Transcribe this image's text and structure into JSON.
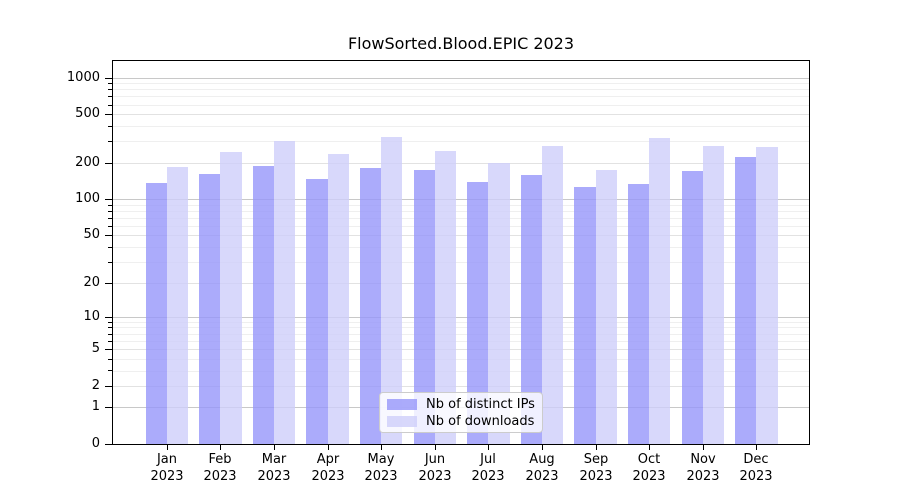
{
  "figure": {
    "title": "FlowSorted.Blood.EPIC 2023"
  },
  "colors": {
    "background": "#ffffff",
    "axis": "#000000",
    "decade_grid": "#c8c8c8",
    "grid": "#e2e2e2",
    "minor_grid": "#efefef",
    "bar_distinct_ips": "rgba(150,150,250,0.8)",
    "bar_downloads": "rgba(206,206,250,0.8)"
  },
  "chart_data": {
    "type": "bar",
    "title": "FlowSorted.Blood.EPIC 2023",
    "xlabel": "",
    "ylabel": "",
    "yscale": "log1p",
    "ylim": [
      0,
      1366
    ],
    "grid": true,
    "legend_position": "lower center",
    "year": "2023",
    "categories": [
      "Jan",
      "Feb",
      "Mar",
      "Apr",
      "May",
      "Jun",
      "Jul",
      "Aug",
      "Sep",
      "Oct",
      "Nov",
      "Dec"
    ],
    "x_tick_labels": [
      "Jan 2023",
      "Feb 2023",
      "Mar 2023",
      "Apr 2023",
      "May 2023",
      "Jun 2023",
      "Jul 2023",
      "Aug 2023",
      "Sep 2023",
      "Oct 2023",
      "Nov 2023",
      "Dec 2023"
    ],
    "y_ticks": [
      0,
      1,
      2,
      5,
      10,
      20,
      50,
      100,
      200,
      500,
      1000
    ],
    "y_minor_gridlines": [
      3,
      4,
      6,
      7,
      8,
      9,
      30,
      40,
      60,
      70,
      80,
      90,
      300,
      400,
      600,
      700,
      800,
      900
    ],
    "series": [
      {
        "name": "Nb of distinct IPs",
        "key": "distinct-ips",
        "color": "rgba(150,150,250,0.8)",
        "values": [
          135,
          163,
          189,
          148,
          182,
          174,
          138,
          160,
          126,
          133,
          172,
          225
        ]
      },
      {
        "name": "Nb of downloads",
        "key": "downloads",
        "color": "rgba(206,206,250,0.8)",
        "values": [
          183,
          246,
          300,
          237,
          328,
          252,
          200,
          277,
          175,
          320,
          277,
          271
        ]
      }
    ]
  }
}
